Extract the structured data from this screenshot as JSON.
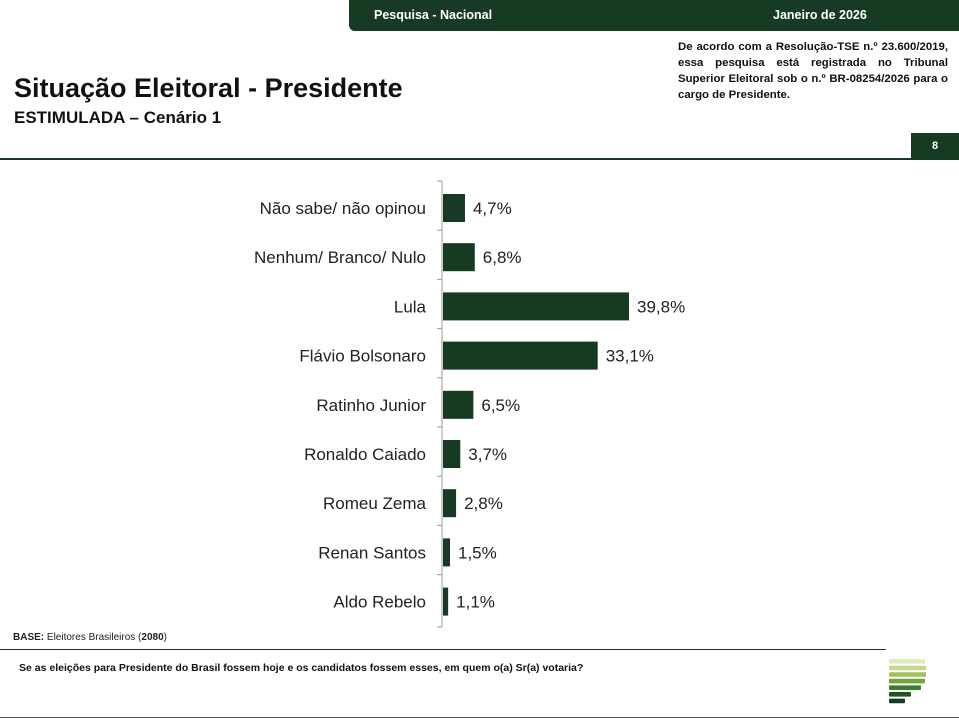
{
  "header": {
    "left_label": "Pesquisa - Nacional",
    "right_label": "Janeiro de 2026",
    "notice": "De acordo com a Resolução-TSE n.º 23.600/2019, essa pesquisa está registrada no Tribunal Superior Eleitoral sob o n.º BR-08254/2026 para o cargo de Presidente.",
    "page_number": "8"
  },
  "page": {
    "title": "Situação Eleitoral - Presidente",
    "subtitle": "ESTIMULADA – Cenário 1"
  },
  "base": {
    "label": "BASE:",
    "text": "Eleitores Brasileiros (",
    "count": "2080",
    "close": ")"
  },
  "question": "Se as eleições para Presidente do Brasil fossem hoje e os candidatos fossem esses, em quem o(a) Sr(a) votaria?",
  "colors": {
    "brand": "#163b22",
    "bar": "#163b22",
    "logo_stripes": [
      "#e2ecbf",
      "#c7da8a",
      "#9fc35a",
      "#6fa53c",
      "#3f7d2e",
      "#1f5426",
      "#163b22"
    ]
  },
  "chart_data": {
    "type": "bar",
    "orientation": "horizontal",
    "categories": [
      "Não sabe/ não opinou",
      "Nenhum/ Branco/ Nulo",
      "Lula",
      "Flávio Bolsonaro",
      "Ratinho Junior",
      "Ronaldo Caiado",
      "Romeu Zema",
      "Renan Santos",
      "Aldo Rebelo"
    ],
    "values": [
      4.7,
      6.8,
      39.8,
      33.1,
      6.5,
      3.7,
      2.8,
      1.5,
      1.1
    ],
    "value_labels": [
      "4,7%",
      "6,8%",
      "39,8%",
      "33,1%",
      "6,5%",
      "3,7%",
      "2,8%",
      "1,5%",
      "1,1%"
    ],
    "title": "",
    "xlabel": "",
    "ylabel": "",
    "xlim": [
      0,
      40
    ],
    "grid": false,
    "legend": "none"
  }
}
